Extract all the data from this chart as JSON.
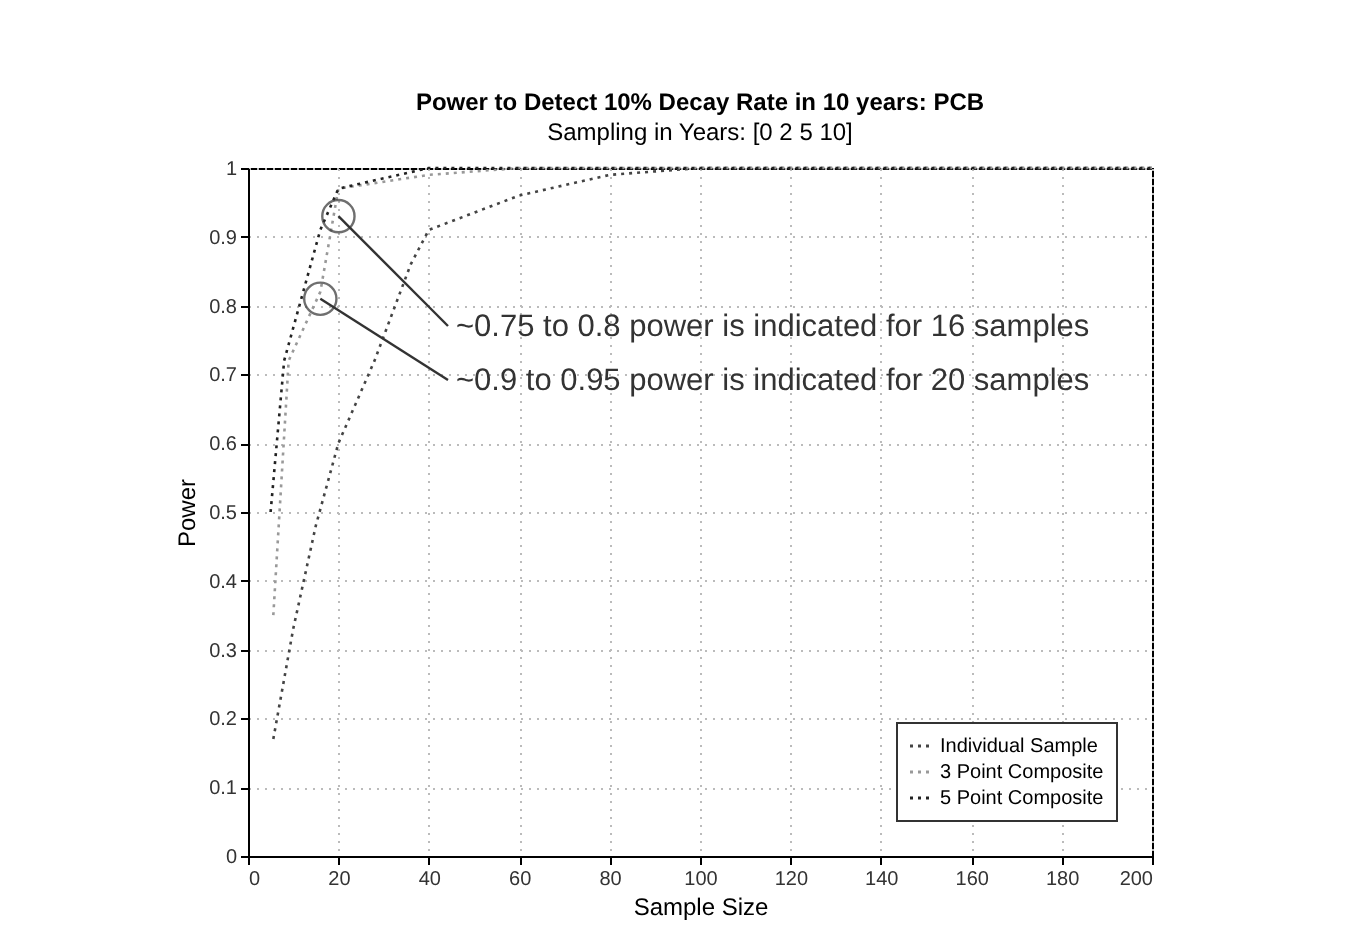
{
  "chart_data": {
    "type": "line",
    "title": "Power to Detect 10% Decay Rate in 10 years: PCB",
    "subtitle": "Sampling in Years: [0  2  5  10]",
    "xlabel": "Sample Size",
    "ylabel": "Power",
    "series": [
      {
        "name": "Individual Sample",
        "color": "#444444",
        "x": [
          5.6,
          10,
          15,
          20,
          28,
          36,
          40,
          60,
          80,
          100,
          200
        ],
        "values": [
          0.17,
          0.33,
          0.48,
          0.6,
          0.72,
          0.86,
          0.91,
          0.96,
          0.99,
          1,
          1
        ]
      },
      {
        "name": "3 Point Composite",
        "color": "#999999",
        "x": [
          5.6,
          9,
          16,
          20,
          40,
          60,
          200
        ],
        "values": [
          0.35,
          0.72,
          0.82,
          0.97,
          0.99,
          1,
          1
        ]
      },
      {
        "name": "5 Point Composite",
        "color": "#222222",
        "x": [
          5,
          8,
          16,
          20,
          40,
          200
        ],
        "values": [
          0.5,
          0.72,
          0.91,
          0.97,
          1,
          1
        ]
      }
    ],
    "xlim": [
      0,
      200
    ],
    "xticks": [
      0,
      20,
      40,
      60,
      80,
      100,
      120,
      140,
      160,
      180,
      200
    ],
    "ylim": [
      0,
      1
    ],
    "yticks": [
      0,
      0.1,
      0.2,
      0.3,
      0.4,
      0.5,
      0.6,
      0.7,
      0.8,
      0.9,
      1
    ],
    "annotations": [
      {
        "text": "~0.75 to 0.8 power is indicated for 16 samples",
        "x": 20,
        "y": 0.93
      },
      {
        "text": "~0.9 to 0.95 power is indicated for 20 samples",
        "x": 16,
        "y": 0.81
      }
    ],
    "grid": true,
    "legend": "bottom right",
    "line_style": "dotted",
    "marker": "none"
  }
}
